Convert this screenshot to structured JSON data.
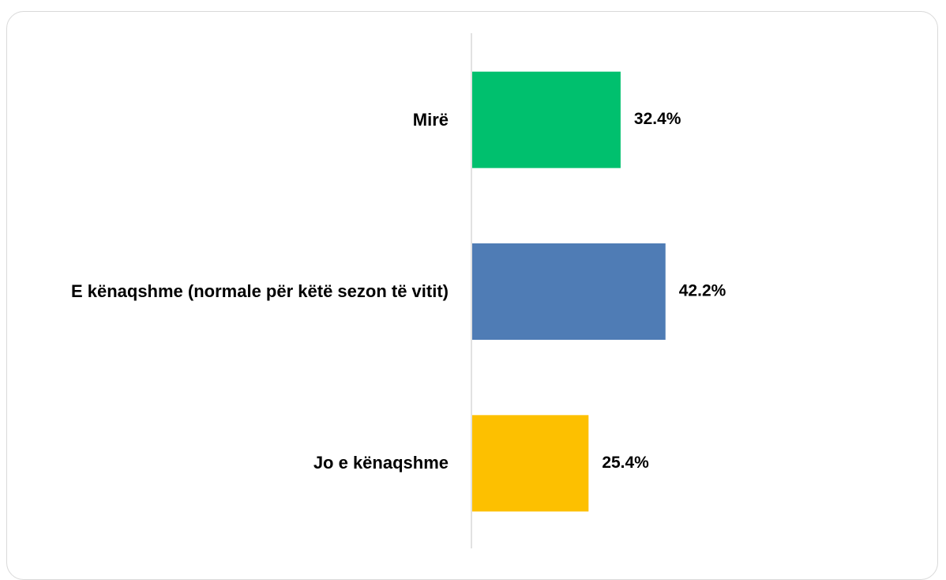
{
  "chart_data": {
    "type": "bar",
    "orientation": "horizontal",
    "categories": [
      "Mirë",
      "E kënaqshme (normale për këtë sezon të vitit)",
      "Jo e kënaqshme"
    ],
    "values": [
      32.4,
      42.2,
      25.4
    ],
    "value_labels": [
      "32.4%",
      "42.2%",
      "25.4%"
    ],
    "colors": [
      "#00c06e",
      "#4f7cb5",
      "#fdc000"
    ]
  }
}
